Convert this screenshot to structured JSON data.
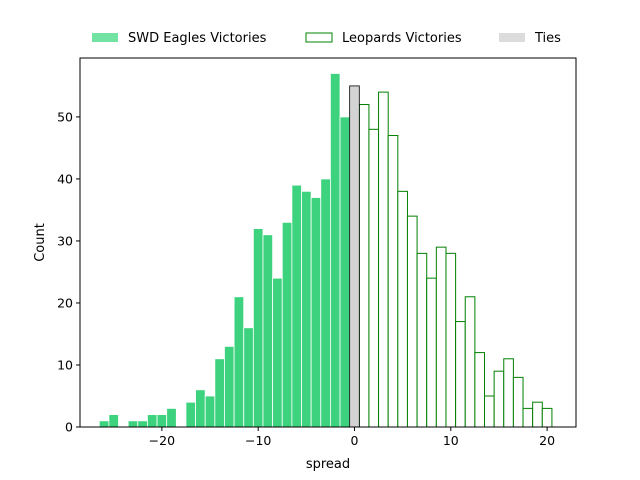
{
  "chart_data": {
    "type": "bar",
    "xlabel": "spread",
    "ylabel": "Count",
    "xlim": [
      -28.5,
      23
    ],
    "ylim": [
      0,
      59.5
    ],
    "xticks": [
      -20,
      -10,
      0,
      10,
      20
    ],
    "yticks": [
      0,
      10,
      20,
      30,
      40,
      50
    ],
    "xtick_labels": [
      "−20",
      "−10",
      "0",
      "10",
      "20"
    ],
    "ytick_labels": [
      "0",
      "10",
      "20",
      "30",
      "40",
      "50"
    ],
    "bin_width": 1,
    "legend": {
      "placement": "top",
      "columns": 3
    },
    "series": [
      {
        "name": "SWD Eagles Victories",
        "style": "filled",
        "color": "#3dd37e",
        "x": [
          -26,
          -25,
          -23,
          -22,
          -21,
          -20,
          -19,
          -17,
          -16,
          -15,
          -14,
          -13,
          -12,
          -11,
          -10,
          -9,
          -8,
          -7,
          -6,
          -5,
          -4,
          -3,
          -2,
          -1
        ],
        "values": [
          1,
          2,
          1,
          1,
          2,
          2,
          3,
          4,
          6,
          5,
          11,
          13,
          21,
          16,
          32,
          31,
          24,
          33,
          39,
          38,
          37,
          40,
          57,
          50
        ]
      },
      {
        "name": "Leopards Victories",
        "style": "outline",
        "color": "#008000",
        "x": [
          1,
          2,
          3,
          4,
          5,
          6,
          7,
          8,
          9,
          10,
          11,
          12,
          13,
          14,
          15,
          16,
          17,
          18,
          19,
          20
        ],
        "values": [
          52,
          48,
          54,
          47,
          38,
          34,
          28,
          24,
          29,
          28,
          17,
          21,
          12,
          5,
          9,
          11,
          8,
          3,
          4,
          3
        ]
      },
      {
        "name": "Ties",
        "style": "filled",
        "color": "#d3d3d3",
        "x": [
          0
        ],
        "values": [
          55
        ]
      }
    ]
  }
}
